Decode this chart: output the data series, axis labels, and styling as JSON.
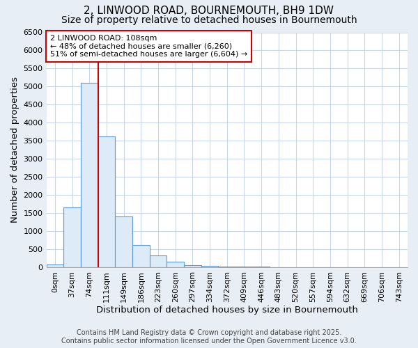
{
  "title_line1": "2, LINWOOD ROAD, BOURNEMOUTH, BH9 1DW",
  "title_line2": "Size of property relative to detached houses in Bournemouth",
  "xlabel": "Distribution of detached houses by size in Bournemouth",
  "ylabel": "Number of detached properties",
  "bar_labels": [
    "0sqm",
    "37sqm",
    "74sqm",
    "111sqm",
    "149sqm",
    "186sqm",
    "223sqm",
    "260sqm",
    "297sqm",
    "334sqm",
    "372sqm",
    "409sqm",
    "446sqm",
    "483sqm",
    "520sqm",
    "557sqm",
    "594sqm",
    "632sqm",
    "669sqm",
    "706sqm",
    "743sqm"
  ],
  "bar_values": [
    70,
    1650,
    5100,
    3620,
    1400,
    610,
    320,
    155,
    60,
    30,
    15,
    10,
    10,
    0,
    0,
    0,
    0,
    0,
    0,
    0,
    0
  ],
  "bar_color": "#ddeaf8",
  "bar_edge_color": "#5b9bd5",
  "plot_bg_color": "#ffffff",
  "figure_bg_color": "#e8eef5",
  "grid_color": "#c8d8e8",
  "vline_color": "#cc0000",
  "annotation_text": "2 LINWOOD ROAD: 108sqm\n← 48% of detached houses are smaller (6,260)\n51% of semi-detached houses are larger (6,604) →",
  "annotation_box_color": "#ffffff",
  "annotation_box_edge": "#cc0000",
  "ylim": [
    0,
    6500
  ],
  "yticks": [
    0,
    500,
    1000,
    1500,
    2000,
    2500,
    3000,
    3500,
    4000,
    4500,
    5000,
    5500,
    6000,
    6500
  ],
  "footer_line1": "Contains HM Land Registry data © Crown copyright and database right 2025.",
  "footer_line2": "Contains public sector information licensed under the Open Government Licence v3.0.",
  "title_fontsize": 11,
  "subtitle_fontsize": 10,
  "axis_label_fontsize": 9.5,
  "tick_fontsize": 8,
  "annotation_fontsize": 8,
  "footer_fontsize": 7
}
